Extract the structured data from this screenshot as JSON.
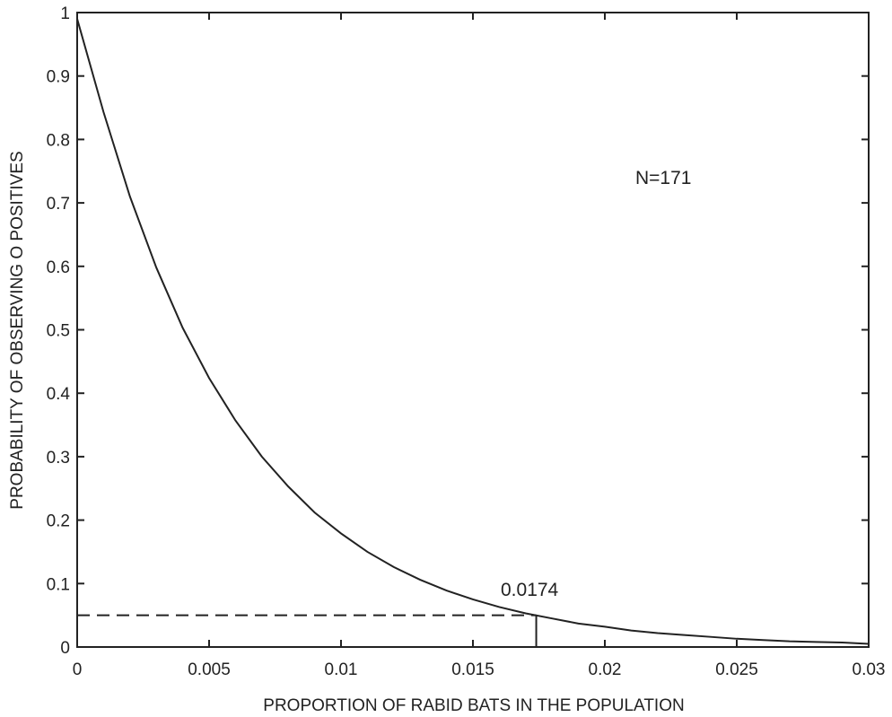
{
  "chart_data": {
    "type": "line",
    "title": "",
    "xlabel": "PROPORTION OF RABID BATS IN THE POPULATION",
    "ylabel": "PROBABILITY OF OBSERVING O POSITIVES",
    "xlim": [
      0,
      0.03
    ],
    "ylim": [
      0,
      1
    ],
    "grid": false,
    "x_ticks": [
      0,
      0.005,
      0.01,
      0.015,
      0.02,
      0.025,
      0.03
    ],
    "x_tick_labels": [
      "0",
      "0.005",
      "0.01",
      "0.015",
      "0.02",
      "0.025",
      "0.03"
    ],
    "y_ticks": [
      0,
      0.1,
      0.2,
      0.3,
      0.4,
      0.5,
      0.6,
      0.7,
      0.8,
      0.9,
      1
    ],
    "y_tick_labels": [
      "0",
      "0.1",
      "0.2",
      "0.3",
      "0.4",
      "0.5",
      "0.6",
      "0.7",
      "0.8",
      "0.9",
      "1"
    ],
    "series": [
      {
        "x": [
          0,
          0.001,
          0.002,
          0.003,
          0.004,
          0.005,
          0.006,
          0.007,
          0.008,
          0.009,
          0.01,
          0.011,
          0.012,
          0.013,
          0.014,
          0.015,
          0.016,
          0.017,
          0.018,
          0.019,
          0.02,
          0.021,
          0.022,
          0.023,
          0.024,
          0.025,
          0.026,
          0.027,
          0.028,
          0.029,
          0.03
        ],
        "values": [
          0.99,
          0.843,
          0.71,
          0.598,
          0.503,
          0.424,
          0.357,
          0.3,
          0.253,
          0.212,
          0.179,
          0.15,
          0.126,
          0.106,
          0.089,
          0.075,
          0.063,
          0.053,
          0.045,
          0.037,
          0.032,
          0.026,
          0.022,
          0.019,
          0.016,
          0.013,
          0.011,
          0.009,
          0.008,
          0.007,
          0.005
        ]
      }
    ],
    "threshold_y": 0.05,
    "marker_x": 0.0174,
    "annotations": {
      "marker_label": "0.0174",
      "n_label": "N=171"
    }
  }
}
